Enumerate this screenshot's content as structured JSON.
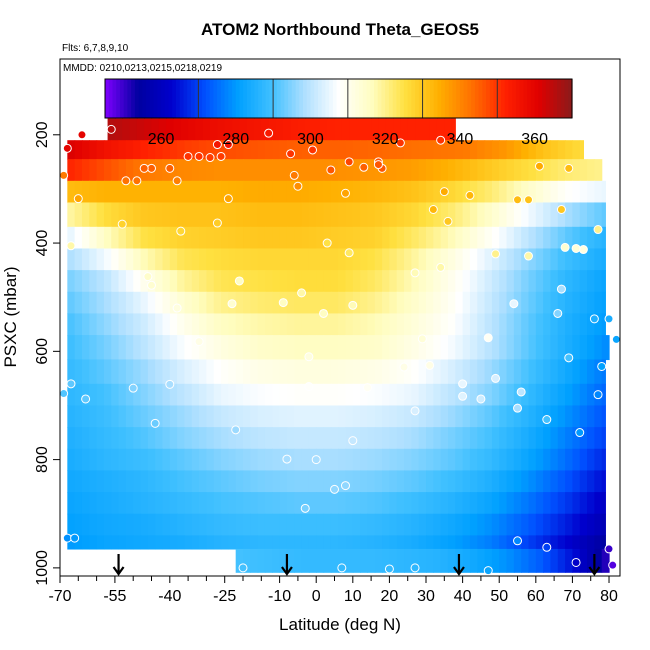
{
  "chart_data": {
    "type": "heatmap",
    "title": "ATOM2 Northbound Theta_GEOS5",
    "subtitle_flights": "Flts: 6,7,8,9,10",
    "subtitle_dates": "MMDD: 0210,0213,0215,0218,0219",
    "xlabel": "Latitude (deg N)",
    "ylabel": "PSXC (mbar)",
    "xlim": [
      -70,
      83
    ],
    "ylim": [
      1015,
      60
    ],
    "y_reversed": true,
    "grid": false,
    "x_ticks": [
      -70,
      -55,
      -40,
      -25,
      -10,
      0,
      10,
      20,
      30,
      40,
      50,
      60,
      70,
      80
    ],
    "x_tick_labels": [
      "-70",
      "-55",
      "-40",
      "-25",
      "-10",
      "0",
      "10",
      "20",
      "30",
      "40",
      "50",
      "60",
      "70",
      "80"
    ],
    "x_minor_ticks": [
      -65,
      -60,
      -50,
      -45,
      -35,
      -30,
      -20,
      -15,
      -5,
      5,
      15,
      25,
      35,
      45,
      55,
      65,
      75
    ],
    "y_ticks": [
      200,
      400,
      600,
      800,
      1000
    ],
    "y_tick_labels": [
      "200",
      "400",
      "600",
      "800",
      "1000"
    ],
    "colorbar": {
      "min": 245,
      "max": 370,
      "ticks": [
        260,
        280,
        300,
        320,
        340,
        360
      ],
      "tick_labels": [
        "260",
        "280",
        "300",
        "320",
        "340",
        "360"
      ],
      "colors": [
        "#7f00ff",
        "#0000a0",
        "#0000cd",
        "#0050ff",
        "#00a0ff",
        "#40c0ff",
        "#b0e0ff",
        "#ffffff",
        "#fffdc0",
        "#ffe040",
        "#ffb000",
        "#ff7000",
        "#ff2000",
        "#e00000",
        "#8b1a1a"
      ],
      "placement": "top"
    },
    "heat_cells": [
      {
        "pmin": 170,
        "pmax": 210,
        "lat0": -57,
        "lat1": 38,
        "theta": [
          366,
          363,
          360,
          357,
          355,
          353,
          352,
          352,
          352,
          352
        ]
      },
      {
        "pmin": 210,
        "pmax": 245,
        "lat0": -68,
        "lat1": 73,
        "theta": [
          362,
          356,
          352,
          349,
          347,
          346,
          345,
          345,
          344,
          343,
          342,
          338,
          331,
          326
        ]
      },
      {
        "pmin": 245,
        "pmax": 285,
        "lat0": -68,
        "lat1": 78,
        "theta": [
          352,
          347,
          342,
          340,
          339,
          339,
          339,
          339,
          338,
          337,
          334,
          330,
          326,
          322,
          320
        ]
      },
      {
        "pmin": 285,
        "pmax": 325,
        "lat0": -68,
        "lat1": 79,
        "theta": [
          332,
          334,
          334,
          334,
          334,
          335,
          335,
          334,
          333,
          331,
          327,
          322,
          315,
          308,
          305
        ]
      },
      {
        "pmin": 325,
        "pmax": 370,
        "lat0": -68,
        "lat1": 79,
        "theta": [
          318,
          326,
          330,
          331,
          331,
          332,
          332,
          331,
          330,
          327,
          322,
          315,
          306,
          298,
          292
        ]
      },
      {
        "pmin": 370,
        "pmax": 410,
        "lat0": -68,
        "lat1": 79,
        "theta": [
          304,
          316,
          325,
          328,
          329,
          330,
          330,
          329,
          328,
          323,
          317,
          309,
          300,
          292,
          286
        ]
      },
      {
        "pmin": 410,
        "pmax": 450,
        "lat0": -68,
        "lat1": 79,
        "theta": [
          298,
          306,
          317,
          324,
          326,
          327,
          327,
          327,
          325,
          319,
          312,
          304,
          296,
          289,
          284
        ]
      },
      {
        "pmin": 450,
        "pmax": 490,
        "lat0": -68,
        "lat1": 79,
        "theta": [
          294,
          300,
          310,
          319,
          324,
          325,
          326,
          326,
          323,
          317,
          310,
          302,
          294,
          287,
          282
        ]
      },
      {
        "pmin": 490,
        "pmax": 530,
        "lat0": -68,
        "lat1": 79,
        "theta": [
          292,
          298,
          305,
          314,
          320,
          322,
          323,
          323,
          320,
          315,
          309,
          301,
          293,
          286,
          281
        ]
      },
      {
        "pmin": 530,
        "pmax": 570,
        "lat0": -68,
        "lat1": 79,
        "theta": [
          290,
          296,
          302,
          310,
          316,
          318,
          319,
          319,
          317,
          313,
          308,
          300,
          292,
          285,
          280
        ]
      },
      {
        "pmin": 570,
        "pmax": 615,
        "lat0": -68,
        "lat1": 80,
        "theta": [
          289,
          294,
          300,
          307,
          312,
          315,
          316,
          316,
          315,
          311,
          306,
          299,
          291,
          284,
          278
        ]
      },
      {
        "pmin": 615,
        "pmax": 660,
        "lat0": -68,
        "lat1": 79,
        "theta": [
          288,
          292,
          297,
          303,
          308,
          311,
          312,
          312,
          311,
          308,
          303,
          297,
          290,
          283,
          276
        ]
      },
      {
        "pmin": 660,
        "pmax": 700,
        "lat0": -68,
        "lat1": 79,
        "theta": [
          287,
          290,
          295,
          300,
          305,
          307,
          308,
          308,
          307,
          305,
          300,
          295,
          288,
          281,
          274
        ]
      },
      {
        "pmin": 700,
        "pmax": 740,
        "lat0": -68,
        "lat1": 79,
        "theta": [
          286,
          289,
          293,
          297,
          301,
          303,
          304,
          304,
          303,
          301,
          297,
          292,
          286,
          279,
          272
        ]
      },
      {
        "pmin": 740,
        "pmax": 780,
        "lat0": -68,
        "lat1": 79,
        "theta": [
          285,
          288,
          291,
          295,
          298,
          300,
          301,
          301,
          300,
          298,
          294,
          290,
          284,
          277,
          270
        ]
      },
      {
        "pmin": 780,
        "pmax": 820,
        "lat0": -68,
        "lat1": 79,
        "theta": [
          284,
          287,
          289,
          292,
          295,
          297,
          298,
          298,
          297,
          295,
          292,
          288,
          282,
          275,
          267
        ]
      },
      {
        "pmin": 820,
        "pmax": 860,
        "lat0": -68,
        "lat1": 79,
        "theta": [
          283,
          285,
          287,
          290,
          292,
          294,
          295,
          295,
          294,
          292,
          289,
          285,
          279,
          272,
          264
        ]
      },
      {
        "pmin": 860,
        "pmax": 900,
        "lat0": -68,
        "lat1": 79,
        "theta": [
          282,
          284,
          286,
          288,
          290,
          291,
          292,
          292,
          291,
          289,
          286,
          282,
          276,
          269,
          261
        ]
      },
      {
        "pmin": 900,
        "pmax": 940,
        "lat0": -68,
        "lat1": 79,
        "theta": [
          281,
          283,
          284,
          286,
          288,
          289,
          289,
          289,
          288,
          286,
          283,
          279,
          273,
          266,
          258
        ]
      },
      {
        "pmin": 940,
        "pmax": 965,
        "lat0": -68,
        "lat1": 79,
        "theta": [
          280,
          282,
          283,
          284,
          286,
          287,
          287,
          287,
          286,
          284,
          281,
          277,
          270,
          263,
          254
        ]
      },
      {
        "pmin": 965,
        "pmax": 1008,
        "lat0": -22,
        "lat1": 80,
        "theta": [
          290,
          289,
          288,
          288,
          288,
          287,
          286,
          283,
          279,
          273,
          264,
          250
        ]
      }
    ],
    "obs_points": [
      {
        "lat": -56,
        "p": 190,
        "theta": 365
      },
      {
        "lat": -64,
        "p": 200,
        "theta": 360
      },
      {
        "lat": -24,
        "p": 218,
        "theta": 356
      },
      {
        "lat": -27,
        "p": 218,
        "theta": 355
      },
      {
        "lat": -13,
        "p": 197,
        "theta": 354
      },
      {
        "lat": -68,
        "p": 225,
        "theta": 360
      },
      {
        "lat": -35,
        "p": 240,
        "theta": 350
      },
      {
        "lat": -32,
        "p": 240,
        "theta": 350
      },
      {
        "lat": -29,
        "p": 242,
        "theta": 349
      },
      {
        "lat": -26,
        "p": 240,
        "theta": 349
      },
      {
        "lat": -7,
        "p": 235,
        "theta": 350
      },
      {
        "lat": -1,
        "p": 228,
        "theta": 350
      },
      {
        "lat": 9,
        "p": 250,
        "theta": 348
      },
      {
        "lat": 17,
        "p": 250,
        "theta": 347
      },
      {
        "lat": 23,
        "p": 215,
        "theta": 350
      },
      {
        "lat": 34,
        "p": 210,
        "theta": 350
      },
      {
        "lat": 18,
        "p": 262,
        "theta": 346
      },
      {
        "lat": 4,
        "p": 265,
        "theta": 346
      },
      {
        "lat": 61,
        "p": 258,
        "theta": 335
      },
      {
        "lat": 69,
        "p": 262,
        "theta": 332
      },
      {
        "lat": -45,
        "p": 262,
        "theta": 345
      },
      {
        "lat": -47,
        "p": 262,
        "theta": 345
      },
      {
        "lat": -40,
        "p": 262,
        "theta": 345
      },
      {
        "lat": -52,
        "p": 285,
        "theta": 343
      },
      {
        "lat": -49,
        "p": 285,
        "theta": 343
      },
      {
        "lat": -6,
        "p": 275,
        "theta": 342
      },
      {
        "lat": -69,
        "p": 275,
        "theta": 342
      },
      {
        "lat": 13,
        "p": 260,
        "theta": 345
      },
      {
        "lat": 17,
        "p": 255,
        "theta": 346
      },
      {
        "lat": 35,
        "p": 305,
        "theta": 335
      },
      {
        "lat": 42,
        "p": 312,
        "theta": 333
      },
      {
        "lat": 67,
        "p": 338,
        "theta": 330
      },
      {
        "lat": 55,
        "p": 320,
        "theta": 332
      },
      {
        "lat": 58,
        "p": 320,
        "theta": 331
      },
      {
        "lat": -38,
        "p": 285,
        "theta": 341
      },
      {
        "lat": -24,
        "p": 318,
        "theta": 336
      },
      {
        "lat": -65,
        "p": 318,
        "theta": 336
      },
      {
        "lat": -5,
        "p": 295,
        "theta": 339
      },
      {
        "lat": 8,
        "p": 308,
        "theta": 336
      },
      {
        "lat": 32,
        "p": 338,
        "theta": 333
      },
      {
        "lat": 36,
        "p": 360,
        "theta": 330
      },
      {
        "lat": -27,
        "p": 363,
        "theta": 329
      },
      {
        "lat": -53,
        "p": 365,
        "theta": 328
      },
      {
        "lat": -37,
        "p": 378,
        "theta": 327
      },
      {
        "lat": 77,
        "p": 375,
        "theta": 320
      },
      {
        "lat": -67,
        "p": 405,
        "theta": 318
      },
      {
        "lat": 3,
        "p": 400,
        "theta": 325
      },
      {
        "lat": 9,
        "p": 418,
        "theta": 323
      },
      {
        "lat": 49,
        "p": 420,
        "theta": 320
      },
      {
        "lat": 58,
        "p": 424,
        "theta": 318
      },
      {
        "lat": 68,
        "p": 408,
        "theta": 314
      },
      {
        "lat": 73,
        "p": 412,
        "theta": 312
      },
      {
        "lat": 71,
        "p": 410,
        "theta": 313
      },
      {
        "lat": 34,
        "p": 445,
        "theta": 318
      },
      {
        "lat": 27,
        "p": 455,
        "theta": 317
      },
      {
        "lat": -46,
        "p": 462,
        "theta": 315
      },
      {
        "lat": -45,
        "p": 478,
        "theta": 314
      },
      {
        "lat": -21,
        "p": 470,
        "theta": 316
      },
      {
        "lat": -4,
        "p": 492,
        "theta": 318
      },
      {
        "lat": -9,
        "p": 510,
        "theta": 316
      },
      {
        "lat": 10,
        "p": 515,
        "theta": 317
      },
      {
        "lat": 54,
        "p": 512,
        "theta": 305
      },
      {
        "lat": 67,
        "p": 485,
        "theta": 298
      },
      {
        "lat": -23,
        "p": 512,
        "theta": 314
      },
      {
        "lat": -38,
        "p": 520,
        "theta": 312
      },
      {
        "lat": 2,
        "p": 530,
        "theta": 316
      },
      {
        "lat": 66,
        "p": 530,
        "theta": 295
      },
      {
        "lat": 76,
        "p": 540,
        "theta": 285
      },
      {
        "lat": 80,
        "p": 540,
        "theta": 284
      },
      {
        "lat": -32,
        "p": 582,
        "theta": 311
      },
      {
        "lat": 29,
        "p": 577,
        "theta": 313
      },
      {
        "lat": 47,
        "p": 575,
        "theta": 309
      },
      {
        "lat": 82,
        "p": 578,
        "theta": 282
      },
      {
        "lat": -2,
        "p": 610,
        "theta": 312
      },
      {
        "lat": 24,
        "p": 629,
        "theta": 311
      },
      {
        "lat": 31,
        "p": 626,
        "theta": 311
      },
      {
        "lat": 69,
        "p": 612,
        "theta": 290
      },
      {
        "lat": 78,
        "p": 628,
        "theta": 281
      },
      {
        "lat": -67,
        "p": 660,
        "theta": 292
      },
      {
        "lat": -50,
        "p": 668,
        "theta": 295
      },
      {
        "lat": -40,
        "p": 661,
        "theta": 298
      },
      {
        "lat": -2,
        "p": 665,
        "theta": 308
      },
      {
        "lat": 14,
        "p": 667,
        "theta": 309
      },
      {
        "lat": 40,
        "p": 660,
        "theta": 305
      },
      {
        "lat": 49,
        "p": 650,
        "theta": 303
      },
      {
        "lat": 56,
        "p": 675,
        "theta": 300
      },
      {
        "lat": -69,
        "p": 678,
        "theta": 291
      },
      {
        "lat": -63,
        "p": 688,
        "theta": 292
      },
      {
        "lat": 40,
        "p": 683,
        "theta": 304
      },
      {
        "lat": 45,
        "p": 688,
        "theta": 302
      },
      {
        "lat": 77,
        "p": 680,
        "theta": 278
      },
      {
        "lat": 55,
        "p": 705,
        "theta": 298
      },
      {
        "lat": 27,
        "p": 710,
        "theta": 303
      },
      {
        "lat": 63,
        "p": 726,
        "theta": 290
      },
      {
        "lat": -44,
        "p": 733,
        "theta": 293
      },
      {
        "lat": -22,
        "p": 745,
        "theta": 297
      },
      {
        "lat": 72,
        "p": 750,
        "theta": 280
      },
      {
        "lat": 10,
        "p": 765,
        "theta": 301
      },
      {
        "lat": -8,
        "p": 799,
        "theta": 298
      },
      {
        "lat": 0,
        "p": 800,
        "theta": 298
      },
      {
        "lat": 5,
        "p": 855,
        "theta": 296
      },
      {
        "lat": 8,
        "p": 848,
        "theta": 296
      },
      {
        "lat": -3,
        "p": 890,
        "theta": 294
      },
      {
        "lat": -68,
        "p": 945,
        "theta": 279
      },
      {
        "lat": -66,
        "p": 945,
        "theta": 280
      },
      {
        "lat": 55,
        "p": 950,
        "theta": 278
      },
      {
        "lat": 63,
        "p": 962,
        "theta": 270
      },
      {
        "lat": 71,
        "p": 990,
        "theta": 262
      },
      {
        "lat": -20,
        "p": 1000,
        "theta": 290
      },
      {
        "lat": 7,
        "p": 1000,
        "theta": 288
      },
      {
        "lat": 20,
        "p": 1002,
        "theta": 288
      },
      {
        "lat": 27,
        "p": 1000,
        "theta": 287
      },
      {
        "lat": 47,
        "p": 1005,
        "theta": 282
      },
      {
        "lat": 80,
        "p": 965,
        "theta": 250
      },
      {
        "lat": 81,
        "p": 995,
        "theta": 248
      }
    ],
    "arrows_lat": [
      -54,
      -8,
      39,
      76
    ]
  }
}
